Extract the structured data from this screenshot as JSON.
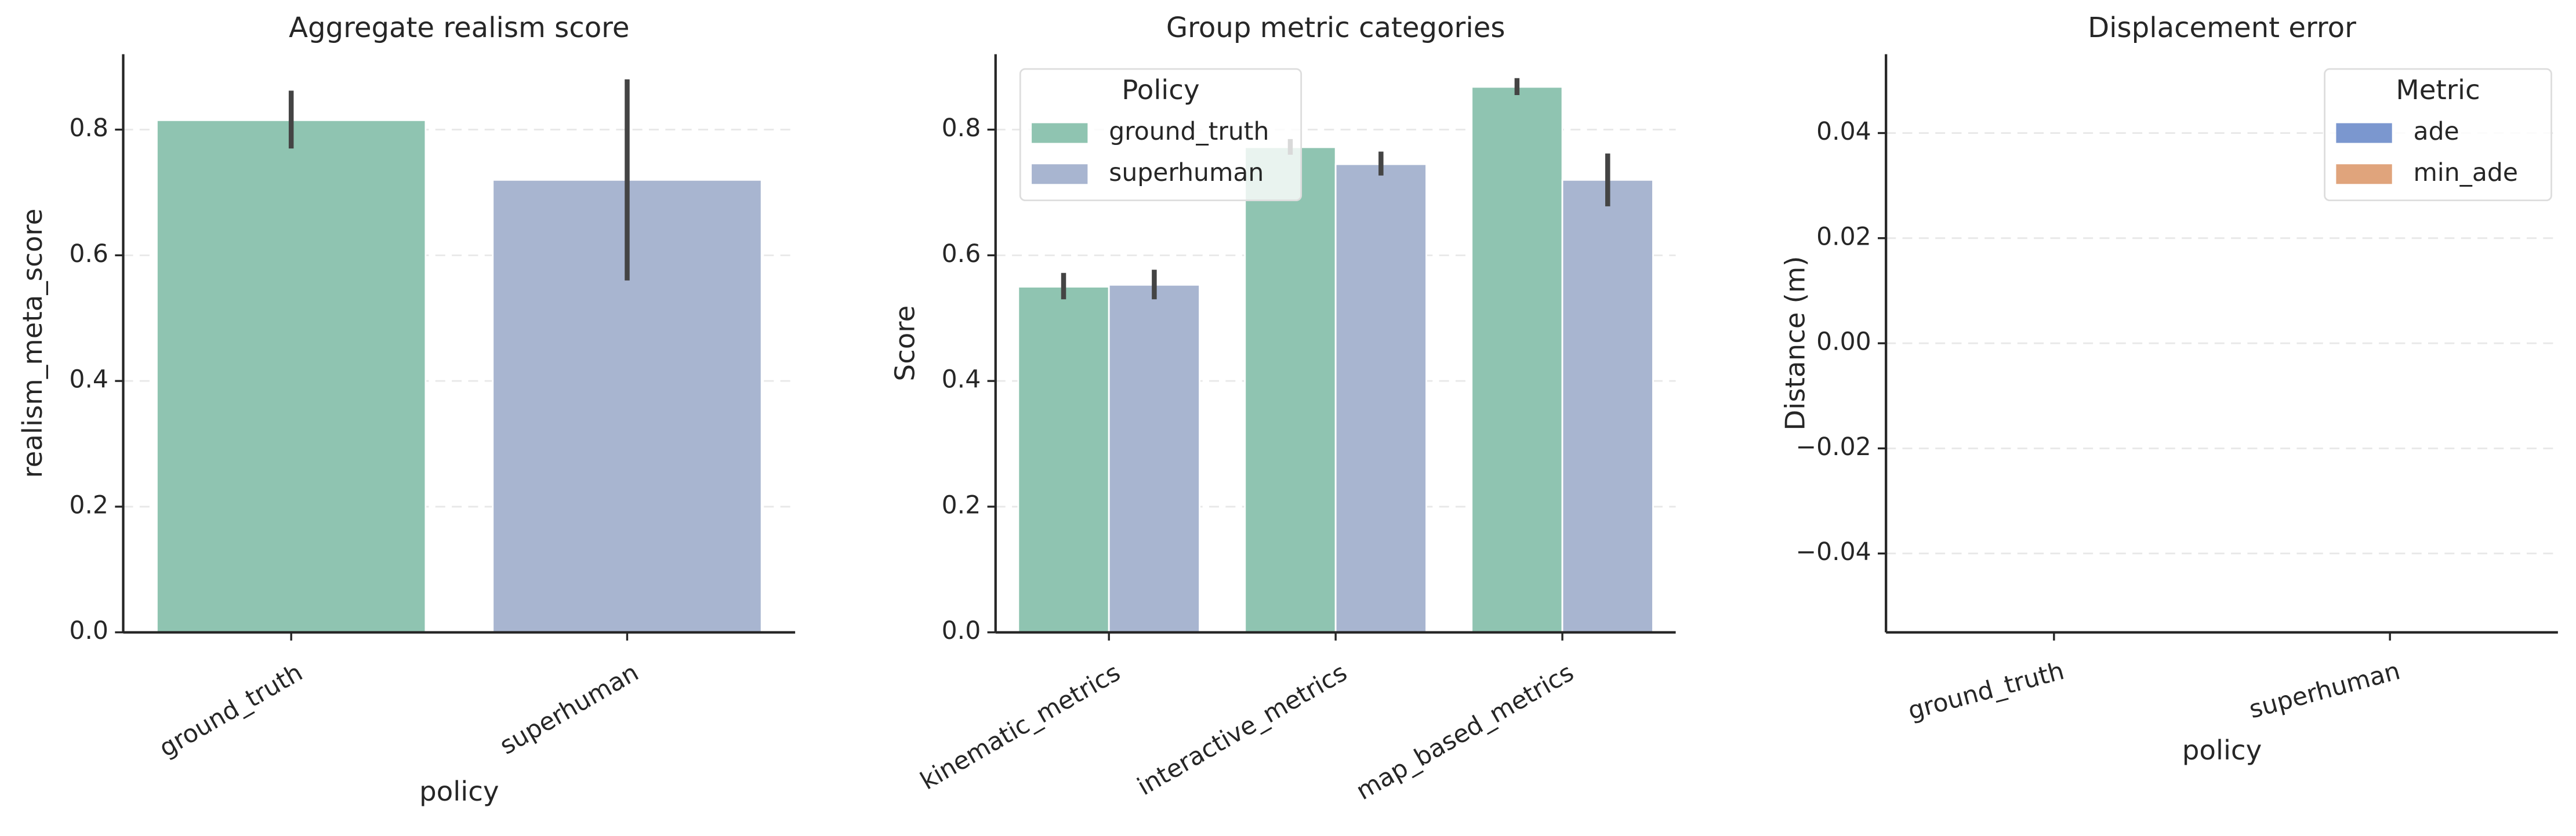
{
  "chart_data": [
    {
      "type": "bar",
      "title": "Aggregate realism score",
      "xlabel": "policy",
      "ylabel": "realism_meta_score",
      "categories": [
        "ground_truth",
        "superhuman"
      ],
      "values": [
        0.815,
        0.72
      ],
      "ci_low": [
        0.77,
        0.56
      ],
      "ci_high": [
        0.862,
        0.88
      ],
      "colors": [
        "#8fc4b1",
        "#a8b5d0"
      ],
      "ylim": [
        0,
        0.92
      ],
      "yticks": [
        {
          "value": 0,
          "label": "0.0"
        },
        0.2,
        0.4,
        0.6,
        0.8
      ],
      "grid": true
    },
    {
      "type": "grouped_bar",
      "title": "Group metric categories",
      "ylabel": "Score",
      "categories": [
        "kinematic_metrics",
        "interactive_metrics",
        "map_based_metrics"
      ],
      "series": [
        {
          "name": "ground_truth",
          "color": "#8fc4b1",
          "values": [
            0.55,
            0.772,
            0.868
          ],
          "ci_low": [
            0.53,
            0.76,
            0.855
          ],
          "ci_high": [
            0.572,
            0.785,
            0.882
          ]
        },
        {
          "name": "superhuman",
          "color": "#a8b5d0",
          "values": [
            0.553,
            0.745,
            0.72
          ],
          "ci_low": [
            0.53,
            0.727,
            0.678
          ],
          "ci_high": [
            0.577,
            0.765,
            0.762
          ]
        }
      ],
      "legend_title": "Policy",
      "legend": "upper left",
      "ylim": [
        0,
        0.92
      ],
      "yticks": [
        {
          "value": 0,
          "label": "0.0"
        },
        0.2,
        0.4,
        0.6,
        0.8
      ],
      "grid": true
    },
    {
      "type": "grouped_bar",
      "title": "Displacement error",
      "xlabel": "policy",
      "ylabel": "Distance (m)",
      "categories": [
        "ground_truth",
        "superhuman"
      ],
      "series": [
        {
          "name": "ade",
          "color": "#7b97cf",
          "values": [
            null,
            null
          ]
        },
        {
          "name": "min_ade",
          "color": "#e0a47c",
          "values": [
            null,
            null
          ]
        }
      ],
      "legend_title": "Metric",
      "legend": "upper right",
      "ylim": [
        -0.055,
        0.055
      ],
      "yticks": [
        {
          "value": -0.04,
          "label": "−0.04"
        },
        {
          "value": -0.02,
          "label": "−0.02"
        },
        {
          "value": 0,
          "label": "0.00"
        },
        0.02,
        0.04
      ],
      "grid": true
    }
  ]
}
